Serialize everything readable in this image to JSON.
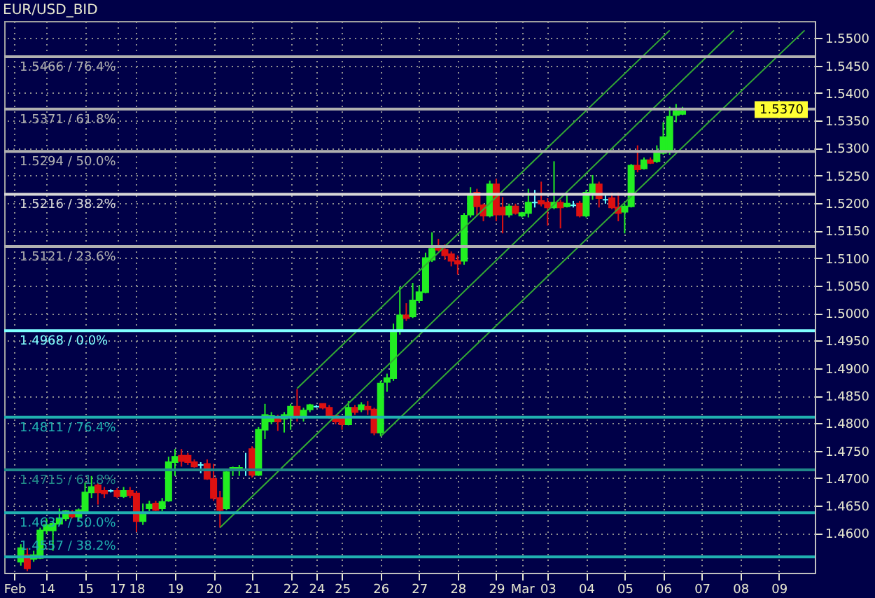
{
  "chart_data": {
    "type": "candlestick",
    "title": "EUR/USD_BID",
    "categories": [
      "Feb",
      null,
      null,
      null,
      null,
      "14",
      null,
      null,
      null,
      null,
      null,
      "15",
      null,
      null,
      null,
      null,
      "17",
      null,
      null,
      "18",
      null,
      null,
      null,
      null,
      null,
      "19",
      null,
      null,
      null,
      null,
      null,
      "20",
      null,
      null,
      null,
      null,
      null,
      "21",
      null,
      null,
      null,
      null,
      null,
      "22",
      null,
      null,
      null,
      "24",
      null,
      null,
      null,
      "25",
      null,
      null,
      null,
      null,
      null,
      "26",
      null,
      null,
      null,
      null,
      null,
      "27",
      null,
      null,
      null,
      null,
      null,
      "28",
      null,
      null,
      null,
      null,
      null,
      "29",
      null,
      null,
      null,
      "Mar",
      null,
      null,
      null,
      "03",
      null,
      null,
      null,
      null,
      null,
      "04",
      null,
      null,
      null,
      null,
      null,
      "05",
      null,
      null,
      null,
      null,
      null,
      "06",
      null,
      null,
      null,
      null,
      null,
      "07",
      null,
      null,
      null,
      null,
      null,
      "08",
      null,
      null,
      null,
      null,
      null,
      "09",
      null,
      null,
      null,
      null
    ],
    "ohlc": [
      null,
      [
        1.4548,
        1.458,
        1.4541,
        1.4573
      ],
      [
        1.456,
        1.4573,
        1.4531,
        1.4536
      ],
      [
        1.4553,
        1.4568,
        1.4548,
        1.456
      ],
      [
        1.4555,
        1.461,
        1.4553,
        1.4605
      ],
      [
        1.4605,
        1.4627,
        1.4598,
        1.4615
      ],
      [
        1.4605,
        1.4622,
        1.4568,
        1.4617
      ],
      [
        1.4617,
        1.4645,
        1.4615,
        1.4627
      ],
      [
        1.4627,
        1.4642,
        1.4622,
        1.464
      ],
      [
        1.4637,
        1.4642,
        1.4627,
        1.463
      ],
      [
        1.463,
        1.4645,
        1.4622,
        1.4642
      ],
      [
        1.464,
        1.4692,
        1.4637,
        1.4674
      ],
      [
        1.4674,
        1.4704,
        1.4664,
        1.4684
      ],
      [
        1.4687,
        1.4692,
        1.4652,
        1.4674
      ],
      [
        1.4677,
        1.4684,
        1.4664,
        1.4672
      ],
      [
        1.4677,
        1.468,
        1.4674,
        1.4677
      ],
      [
        1.4677,
        1.4682,
        1.4664,
        1.4667
      ],
      [
        1.4667,
        1.4684,
        1.4664,
        1.4677
      ],
      [
        1.4677,
        1.4684,
        1.4664,
        1.4669
      ],
      [
        1.4672,
        1.4677,
        1.4602,
        1.4622
      ],
      [
        1.4622,
        1.4654,
        1.4615,
        1.4635
      ],
      [
        1.4645,
        1.4659,
        1.464,
        1.4652
      ],
      [
        1.4654,
        1.4659,
        1.464,
        1.4642
      ],
      [
        1.4645,
        1.4664,
        1.464,
        1.4657
      ],
      [
        1.4659,
        1.4739,
        1.4657,
        1.4729
      ],
      [
        1.4729,
        1.4753,
        1.4704,
        1.4739
      ],
      [
        1.4741,
        1.4753,
        1.4721,
        1.4731
      ],
      [
        1.4741,
        1.4746,
        1.4724,
        1.4729
      ],
      [
        1.4729,
        1.4734,
        1.4719,
        1.4721
      ],
      [
        1.4724,
        1.4729,
        1.4709,
        1.4724
      ],
      [
        1.4726,
        1.4734,
        1.4697,
        1.4699
      ],
      [
        1.4699,
        1.4726,
        1.4659,
        1.4664
      ],
      [
        1.4664,
        1.4677,
        1.461,
        1.4642
      ],
      [
        1.4645,
        1.4716,
        1.4642,
        1.4711
      ],
      [
        1.4714,
        1.4721,
        1.4704,
        1.4719
      ],
      [
        1.4716,
        1.4724,
        1.4704,
        1.4719
      ],
      [
        1.4716,
        1.4746,
        1.4704,
        1.4716
      ],
      [
        1.4753,
        1.4758,
        1.4701,
        1.4706
      ],
      [
        1.4706,
        1.4793,
        1.4704,
        1.4788
      ],
      [
        1.4788,
        1.4835,
        1.4771,
        1.4815
      ],
      [
        1.4803,
        1.482,
        1.4798,
        1.4813
      ],
      [
        1.481,
        1.4815,
        1.4786,
        1.4803
      ],
      [
        1.4808,
        1.482,
        1.4783,
        1.4815
      ],
      [
        1.481,
        1.4835,
        1.4788,
        1.483
      ],
      [
        1.483,
        1.4862,
        1.4803,
        1.4813
      ],
      [
        1.481,
        1.4828,
        1.4803,
        1.4823
      ],
      [
        1.4825,
        1.4835,
        1.482,
        1.4833
      ],
      [
        1.483,
        1.4833,
        1.4828,
        1.483
      ],
      [
        1.4835,
        1.4835,
        1.4825,
        1.4828
      ],
      [
        1.4828,
        1.4833,
        1.4808,
        1.4813
      ],
      [
        1.4813,
        1.4815,
        1.4798,
        1.4803
      ],
      [
        1.4808,
        1.4813,
        1.4788,
        1.4798
      ],
      [
        1.4798,
        1.484,
        1.4796,
        1.4828
      ],
      [
        1.4828,
        1.4833,
        1.4815,
        1.482
      ],
      [
        1.4825,
        1.4838,
        1.482,
        1.4833
      ],
      [
        1.483,
        1.484,
        1.4815,
        1.4825
      ],
      [
        1.4825,
        1.4828,
        1.4778,
        1.4783
      ],
      [
        1.4783,
        1.4877,
        1.4776,
        1.4872
      ],
      [
        1.4875,
        1.489,
        1.4857,
        1.4882
      ],
      [
        1.4882,
        1.4981,
        1.4877,
        1.4966
      ],
      [
        1.4969,
        1.5048,
        1.4961,
        1.4996
      ],
      [
        1.4996,
        1.5018,
        1.4986,
        1.4991
      ],
      [
        1.4994,
        1.5055,
        1.4991,
        1.5023
      ],
      [
        1.5023,
        1.505,
        1.5018,
        1.5038
      ],
      [
        1.5038,
        1.511,
        1.5036,
        1.51
      ],
      [
        1.5097,
        1.5147,
        1.5093,
        1.5117
      ],
      [
        1.5122,
        1.5135,
        1.5112,
        1.5115
      ],
      [
        1.5115,
        1.5125,
        1.5097,
        1.5105
      ],
      [
        1.5107,
        1.5112,
        1.5085,
        1.5095
      ],
      [
        1.5095,
        1.5105,
        1.507,
        1.509
      ],
      [
        1.5095,
        1.5182,
        1.5088,
        1.5177
      ],
      [
        1.5179,
        1.5229,
        1.5174,
        1.5214
      ],
      [
        1.5219,
        1.5226,
        1.5177,
        1.5194
      ],
      [
        1.5196,
        1.5199,
        1.5167,
        1.5177
      ],
      [
        1.5177,
        1.5241,
        1.5174,
        1.5234
      ],
      [
        1.5234,
        1.5244,
        1.5167,
        1.5179
      ],
      [
        1.5192,
        1.5211,
        1.5145,
        1.5179
      ],
      [
        1.5179,
        1.5199,
        1.5174,
        1.5194
      ],
      [
        1.5194,
        1.5199,
        1.5179,
        1.5182
      ],
      [
        1.5177,
        1.5184,
        1.5174,
        1.5182
      ],
      [
        1.5182,
        1.5226,
        1.5174,
        1.5201
      ],
      [
        1.5201,
        1.5224,
        1.5192,
        1.5201
      ],
      [
        1.5204,
        1.5239,
        1.5194,
        1.5199
      ],
      [
        1.5201,
        1.5209,
        1.5159,
        1.5192
      ],
      [
        1.5192,
        1.5276,
        1.5189,
        1.5201
      ],
      [
        1.5201,
        1.5206,
        1.5154,
        1.5192
      ],
      [
        1.5194,
        1.5214,
        1.5192,
        1.5199
      ],
      [
        1.5196,
        1.5204,
        1.5192,
        1.5196
      ],
      [
        1.5199,
        1.5204,
        1.5174,
        1.5177
      ],
      [
        1.5177,
        1.5224,
        1.5174,
        1.5219
      ],
      [
        1.5219,
        1.5251,
        1.5206,
        1.5234
      ],
      [
        1.5234,
        1.5239,
        1.5192,
        1.5209
      ],
      [
        1.5206,
        1.5216,
        1.5199,
        1.5206
      ],
      [
        1.5209,
        1.5219,
        1.5189,
        1.5192
      ],
      [
        1.5192,
        1.5219,
        1.5167,
        1.5182
      ],
      [
        1.5184,
        1.5199,
        1.5145,
        1.5194
      ],
      [
        1.5194,
        1.5271,
        1.5192,
        1.5268
      ],
      [
        1.5268,
        1.5305,
        1.5256,
        1.5261
      ],
      [
        1.5263,
        1.5283,
        1.5261,
        1.5278
      ],
      [
        1.5278,
        1.5283,
        1.5271,
        1.5273
      ],
      [
        1.5276,
        1.5305,
        1.5273,
        1.5291
      ],
      [
        1.5291,
        1.5347,
        1.5288,
        1.532
      ],
      [
        1.5293,
        1.5375,
        1.5288,
        1.5357
      ],
      [
        1.536,
        1.538,
        1.5347,
        1.5367
      ],
      [
        1.5362,
        1.5375,
        1.536,
        1.5367
      ],
      null,
      null,
      null,
      null,
      null,
      null,
      null,
      null,
      null,
      null,
      null,
      null,
      null,
      null,
      null,
      null,
      null,
      null,
      null
    ],
    "colors": [
      null,
      "#22ee22",
      "#dd1111",
      "#22ee22",
      "#22ee22",
      "#22ee22",
      "#22ee22",
      "#22ee22",
      "#22ee22",
      "#dd1111",
      "#22ee22",
      "#22ee22",
      "#22ee22",
      "#dd1111",
      "#dd1111",
      "#66ffff",
      "#dd1111",
      "#22ee22",
      "#dd1111",
      "#dd1111",
      "#22ee22",
      "#22ee22",
      "#dd1111",
      "#22ee22",
      "#22ee22",
      "#22ee22",
      "#dd1111",
      "#dd1111",
      "#dd1111",
      "#66ffff",
      "#dd1111",
      "#dd1111",
      "#dd1111",
      "#22ee22",
      "#22ee22",
      "#22ee22",
      "#66ffff",
      "#dd1111",
      "#22ee22",
      "#22ee22",
      "#22ee22",
      "#dd1111",
      "#22ee22",
      "#22ee22",
      "#dd1111",
      "#22ee22",
      "#22ee22",
      "#66ffff",
      "#dd1111",
      "#dd1111",
      "#dd1111",
      "#dd1111",
      "#22ee22",
      "#dd1111",
      "#22ee22",
      "#dd1111",
      "#dd1111",
      "#22ee22",
      "#22ee22",
      "#22ee22",
      "#22ee22",
      "#dd1111",
      "#22ee22",
      "#22ee22",
      "#22ee22",
      "#22ee22",
      "#dd1111",
      "#dd1111",
      "#dd1111",
      "#dd1111",
      "#22ee22",
      "#22ee22",
      "#dd1111",
      "#dd1111",
      "#22ee22",
      "#dd1111",
      "#dd1111",
      "#22ee22",
      "#dd1111",
      "#22ee22",
      "#22ee22",
      "#66ffff",
      "#dd1111",
      "#dd1111",
      "#22ee22",
      "#dd1111",
      "#22ee22",
      "#66ffff",
      "#dd1111",
      "#22ee22",
      "#22ee22",
      "#dd1111",
      "#66ffff",
      "#dd1111",
      "#dd1111",
      "#22ee22",
      "#22ee22",
      "#dd1111",
      "#22ee22",
      "#dd1111",
      "#22ee22",
      "#22ee22",
      "#22ee22",
      "#22ee22",
      "#22ee22",
      null,
      null,
      null,
      null,
      null,
      null,
      null,
      null,
      null,
      null,
      null,
      null,
      null,
      null,
      null,
      null,
      null,
      null,
      null
    ],
    "series": [
      {
        "type": "line",
        "color": "#33aa33",
        "values": [
          null,
          null,
          null,
          null,
          null,
          null,
          null,
          null,
          null,
          null,
          null,
          null,
          null,
          null,
          null,
          null,
          null,
          null,
          null,
          null,
          null,
          null,
          null,
          null,
          null,
          null,
          null,
          null,
          null,
          null,
          null,
          null,
          null,
          null,
          null,
          null,
          null,
          null,
          null,
          null,
          null,
          null,
          null,
          null,
          1.4863,
          null,
          null,
          null,
          null,
          null,
          null,
          null,
          null,
          null,
          null,
          null,
          null,
          null,
          null,
          null,
          null,
          null,
          null,
          null,
          null,
          null,
          null,
          null,
          null,
          null,
          null,
          null,
          null,
          null,
          null,
          null,
          null,
          null,
          null,
          null,
          null,
          null,
          null,
          null,
          null,
          null,
          null,
          null,
          null,
          null,
          null,
          null,
          null,
          null,
          null,
          null,
          null,
          null,
          null,
          null,
          null,
          null,
          1.5514,
          null,
          null,
          null,
          null,
          null,
          null,
          null,
          null,
          null,
          null,
          null,
          null,
          null,
          null,
          null,
          null,
          null,
          null,
          null,
          null,
          null
        ]
      },
      {
        "type": "line",
        "color": "#33aa33",
        "values": [
          null,
          null,
          null,
          null,
          null,
          null,
          null,
          null,
          null,
          null,
          null,
          null,
          null,
          null,
          null,
          null,
          null,
          null,
          null,
          null,
          null,
          null,
          null,
          null,
          null,
          null,
          null,
          null,
          null,
          null,
          null,
          null,
          1.461,
          null,
          null,
          null,
          null,
          null,
          null,
          null,
          null,
          null,
          null,
          null,
          null,
          null,
          null,
          null,
          null,
          null,
          null,
          null,
          null,
          null,
          null,
          null,
          null,
          null,
          null,
          null,
          null,
          null,
          null,
          null,
          null,
          null,
          null,
          null,
          null,
          null,
          null,
          null,
          null,
          null,
          null,
          null,
          null,
          null,
          null,
          null,
          null,
          null,
          null,
          null,
          null,
          null,
          null,
          null,
          null,
          null,
          null,
          null,
          null,
          null,
          null,
          null,
          null,
          null,
          null,
          null,
          null,
          null,
          null,
          null,
          null,
          null,
          null,
          null,
          null,
          null,
          null,
          null,
          1.5514,
          null,
          null,
          null,
          null,
          null,
          null,
          null,
          null,
          null,
          null,
          null
        ]
      },
      {
        "type": "line",
        "color": "#33aa33",
        "values": [
          null,
          null,
          null,
          null,
          null,
          null,
          null,
          null,
          null,
          null,
          null,
          null,
          null,
          null,
          null,
          null,
          null,
          null,
          null,
          null,
          null,
          null,
          null,
          null,
          null,
          null,
          null,
          null,
          null,
          null,
          null,
          null,
          null,
          null,
          null,
          null,
          null,
          null,
          null,
          null,
          null,
          null,
          null,
          null,
          null,
          null,
          null,
          null,
          null,
          null,
          null,
          null,
          null,
          null,
          null,
          null,
          null,
          1.4776,
          null,
          null,
          null,
          null,
          null,
          null,
          null,
          null,
          null,
          null,
          null,
          null,
          null,
          null,
          null,
          null,
          null,
          null,
          null,
          null,
          null,
          null,
          null,
          null,
          null,
          null,
          null,
          null,
          null,
          null,
          null,
          null,
          null,
          null,
          null,
          null,
          null,
          null,
          null,
          null,
          null,
          null,
          null,
          null,
          null,
          null,
          null,
          null,
          null,
          null,
          null,
          null,
          null,
          null,
          null,
          null,
          null,
          null,
          null,
          null,
          null,
          null,
          null,
          null,
          null,
          1.5514
        ]
      }
    ],
    "ref_lines": [
      {
        "axis": "y",
        "value": 1.5466,
        "label": "1.5466 / 76.4%",
        "color": "#b0b0b0"
      },
      {
        "axis": "y",
        "value": 1.5371,
        "label": "1.5371 / 61.8%",
        "color": "#b0b0b0"
      },
      {
        "axis": "y",
        "value": 1.5294,
        "label": "1.5294 / 50.0%",
        "color": "#b0b0b0"
      },
      {
        "axis": "y",
        "value": 1.5216,
        "label": "1.5216 / 38.2%",
        "color": "#d8d8d8"
      },
      {
        "axis": "y",
        "value": 1.5121,
        "label": "1.5121 / 23.6%",
        "color": "#b0b0b0"
      },
      {
        "axis": "y",
        "value": 1.4968,
        "label": "1.4968 / 0.0%",
        "color": "#80ffff"
      },
      {
        "axis": "y",
        "value": 1.4811,
        "label": "1.4811 / 76.4%",
        "color": "#20b0b0"
      },
      {
        "axis": "y",
        "value": 1.4715,
        "label": "1.4715 / 61.8%",
        "color": "#208888"
      },
      {
        "axis": "y",
        "value": 1.4637,
        "label": "1.4637 / 50.0%",
        "color": "#20b0b0"
      },
      {
        "axis": "y",
        "value": 1.4557,
        "label": "1.4557 / 38.2%",
        "color": "#20b0b0"
      }
    ],
    "annotations": [
      {
        "text": "1.5370",
        "y": 1.537
      }
    ],
    "ylim": [
      1.4528,
      1.5531
    ],
    "yticks": [
      {
        "value": 1.46,
        "label": "1.4600"
      },
      {
        "value": 1.465,
        "label": "1.4650"
      },
      {
        "value": 1.47,
        "label": "1.4700"
      },
      {
        "value": 1.475,
        "label": "1.4750"
      },
      {
        "value": 1.48,
        "label": "1.4800"
      },
      {
        "value": 1.485,
        "label": "1.4850"
      },
      {
        "value": 1.49,
        "label": "1.4900"
      },
      {
        "value": 1.495,
        "label": "1.4950"
      },
      {
        "value": 1.5,
        "label": "1.5000"
      },
      {
        "value": 1.505,
        "label": "1.5050"
      },
      {
        "value": 1.51,
        "label": "1.5100"
      },
      {
        "value": 1.515,
        "label": "1.5150"
      },
      {
        "value": 1.52,
        "label": "1.5200"
      },
      {
        "value": 1.525,
        "label": "1.5250"
      },
      {
        "value": 1.53,
        "label": "1.5300"
      },
      {
        "value": 1.535,
        "label": "1.5350"
      },
      {
        "value": 1.54,
        "label": "1.5400"
      },
      {
        "value": 1.545,
        "label": "1.5450"
      },
      {
        "value": 1.55,
        "label": "1.5500"
      }
    ],
    "grid": true
  }
}
